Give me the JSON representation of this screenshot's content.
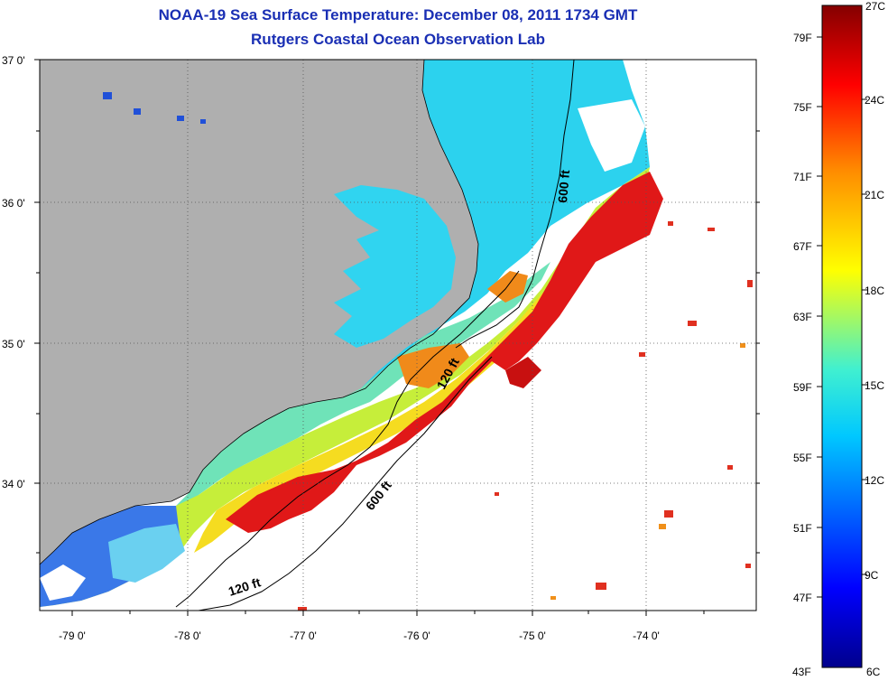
{
  "header": {
    "title": "NOAA-19 Sea Surface Temperature:  December 08, 2011 1734 GMT",
    "subtitle": "Rutgers Coastal Ocean Observation Lab"
  },
  "axes": {
    "lat_labels": [
      "37 0'",
      "36 0'",
      "35 0'",
      "34 0'"
    ],
    "lon_labels": [
      "-79 0'",
      "-78 0'",
      "-77 0'",
      "-76 0'",
      "-75 0'",
      "-74 0'"
    ]
  },
  "contours": {
    "label_600_north": "600 ft",
    "label_120_mid": "120 ft",
    "label_600_south": "600 ft",
    "label_120_south": "120 ft"
  },
  "colorbar": {
    "top_label": "27C",
    "fahrenheit": [
      "79F",
      "75F",
      "71F",
      "67F",
      "63F",
      "59F",
      "55F",
      "51F",
      "47F"
    ],
    "celsius": [
      "24C",
      "21C",
      "18C",
      "15C",
      "12C",
      "9C"
    ],
    "bottom_f": "43F",
    "bottom_c": "6C"
  },
  "colors": {
    "land": "#afafaf",
    "cold": "#1f3fd0",
    "cyan": "#28d6f0",
    "green": "#7ee27a",
    "yellow": "#f2e82a",
    "orange": "#f08a1a",
    "red": "#e02020",
    "title": "#1a2fb4"
  }
}
